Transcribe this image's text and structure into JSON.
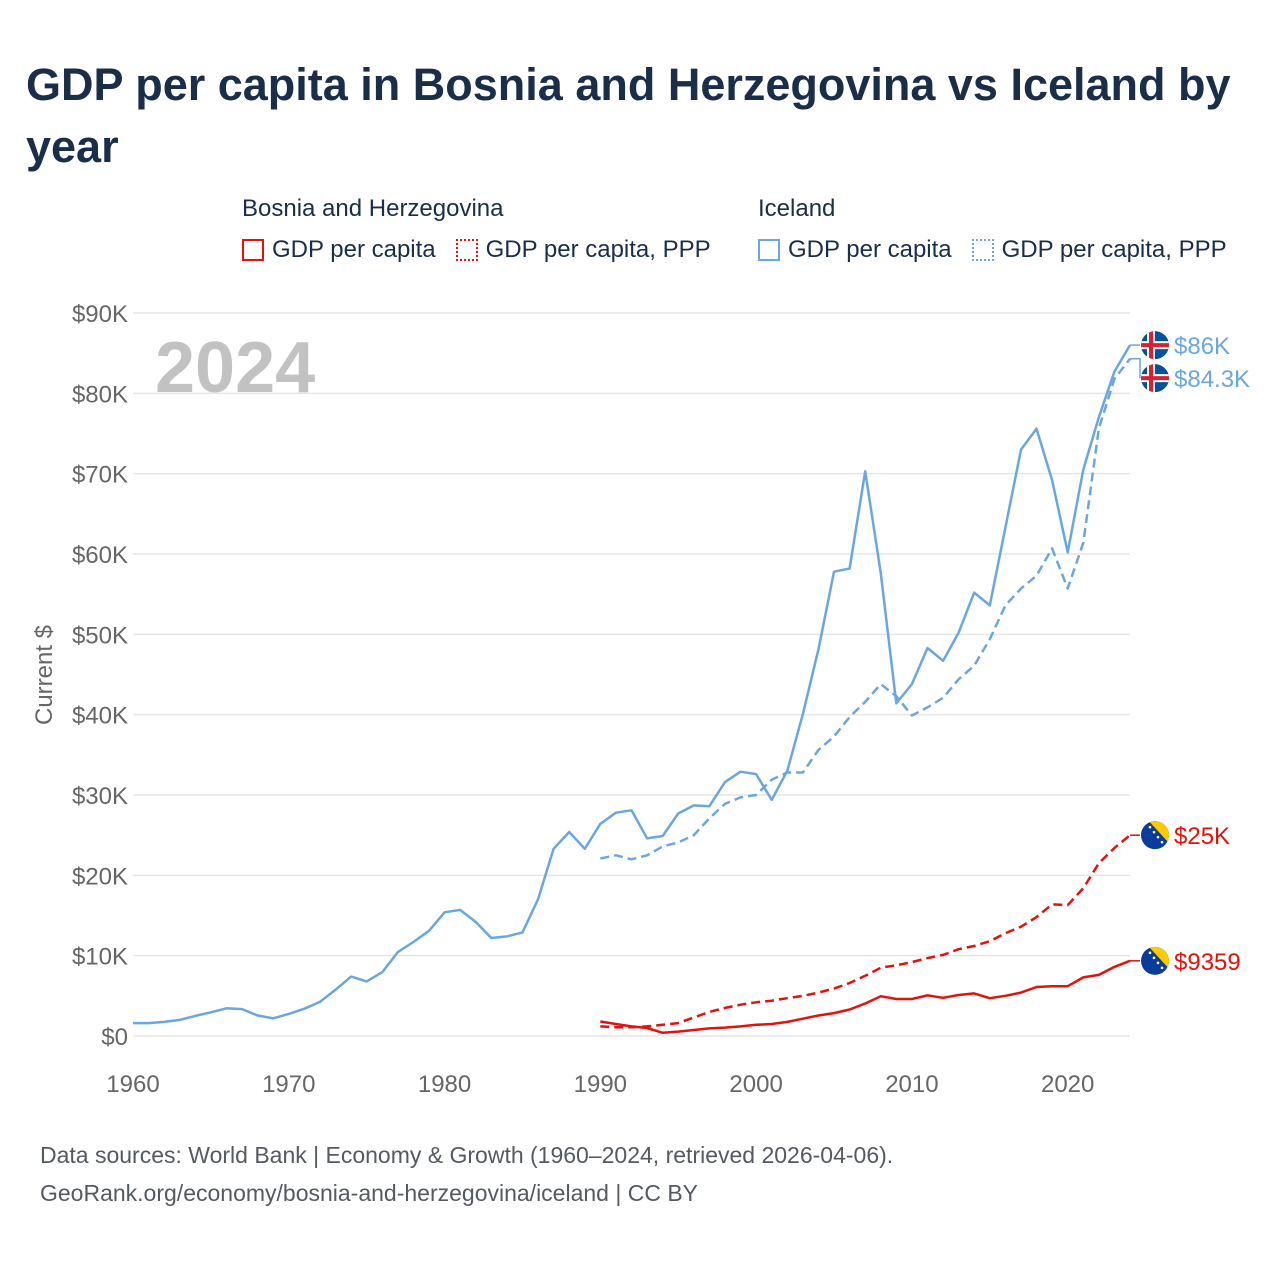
{
  "title": "GDP per capita in Bosnia and Herzegovina vs Iceland by year",
  "legend": {
    "groups": [
      {
        "name": "Bosnia and Herzegovina",
        "color": "#e3120b",
        "items": [
          {
            "label": "GDP per capita",
            "style": "solid"
          },
          {
            "label": "GDP per capita, PPP",
            "style": "dotted"
          }
        ]
      },
      {
        "name": "Iceland",
        "color": "#6aa6e0",
        "items": [
          {
            "label": "GDP per capita",
            "style": "solid"
          },
          {
            "label": "GDP per capita, PPP",
            "style": "dotted"
          }
        ]
      }
    ]
  },
  "year_label": "2024",
  "footer": {
    "line1": "Data sources: World Bank | Economy & Growth (1960–2024, retrieved 2026-04-06).",
    "line2": "GeoRank.org/economy/bosnia-and-herzegovina/iceland | CC BY"
  },
  "chart_data": {
    "type": "line",
    "ylabel": "Current $",
    "xlabel": "",
    "xlim": [
      1960,
      2024
    ],
    "ylim": [
      0,
      90000
    ],
    "x_ticks": [
      1960,
      1970,
      1980,
      1990,
      2000,
      2010,
      2020
    ],
    "x_tick_labels": [
      "1960",
      "1970",
      "1980",
      "1990",
      "2000",
      "2010",
      "2020"
    ],
    "y_ticks": [
      0,
      10000,
      20000,
      30000,
      40000,
      50000,
      60000,
      70000,
      80000,
      90000
    ],
    "y_tick_labels": [
      "$0",
      "$10K",
      "$20K",
      "$30K",
      "$40K",
      "$50K",
      "$60K",
      "$70K",
      "$80K",
      "$90K"
    ],
    "grid": true,
    "series": [
      {
        "name": "Iceland GDP per capita",
        "country": "Iceland",
        "flag": "iceland-flag-icon",
        "color": "#6aa6e0",
        "dash": "solid",
        "end_label": "$86K",
        "x": [
          1960,
          1961,
          1962,
          1963,
          1964,
          1965,
          1966,
          1967,
          1968,
          1969,
          1970,
          1971,
          1972,
          1973,
          1974,
          1975,
          1976,
          1977,
          1978,
          1979,
          1980,
          1981,
          1982,
          1983,
          1984,
          1985,
          1986,
          1987,
          1988,
          1989,
          1990,
          1991,
          1992,
          1993,
          1994,
          1995,
          1996,
          1997,
          1998,
          1999,
          2000,
          2001,
          2002,
          2003,
          2004,
          2005,
          2006,
          2007,
          2008,
          2009,
          2010,
          2011,
          2012,
          2013,
          2014,
          2015,
          2016,
          2017,
          2018,
          2019,
          2020,
          2021,
          2022,
          2023,
          2024
        ],
        "y": [
          1600,
          1600,
          1750,
          2000,
          2500,
          2950,
          3450,
          3350,
          2550,
          2200,
          2750,
          3400,
          4250,
          5750,
          7400,
          6800,
          7950,
          10450,
          11700,
          13100,
          15400,
          15700,
          14200,
          12200,
          12400,
          12900,
          17000,
          23300,
          25400,
          23300,
          26400,
          27800,
          28100,
          24600,
          24900,
          27700,
          28700,
          28600,
          31600,
          32900,
          32600,
          29400,
          33000,
          40100,
          48100,
          57800,
          58200,
          70300,
          57600,
          41400,
          43800,
          48300,
          46700,
          50200,
          55200,
          53600,
          63300,
          73000,
          75600,
          69200,
          60200,
          70500,
          77000,
          82700,
          86000
        ]
      },
      {
        "name": "Iceland GDP per capita, PPP",
        "country": "Iceland",
        "flag": "iceland-flag-icon",
        "color": "#6aa6e0",
        "dash": "dashed",
        "end_label": "$84.3K",
        "x": [
          1990,
          1991,
          1992,
          1993,
          1994,
          1995,
          1996,
          1997,
          1998,
          1999,
          2000,
          2001,
          2002,
          2003,
          2004,
          2005,
          2006,
          2007,
          2008,
          2009,
          2010,
          2011,
          2012,
          2013,
          2014,
          2015,
          2016,
          2017,
          2018,
          2019,
          2020,
          2021,
          2022,
          2023,
          2024
        ],
        "y": [
          22100,
          22500,
          22000,
          22500,
          23600,
          24100,
          25000,
          27100,
          28900,
          29700,
          30000,
          31900,
          32800,
          32800,
          35600,
          37300,
          39700,
          41600,
          43800,
          42300,
          39900,
          40900,
          42100,
          44400,
          46100,
          49400,
          53600,
          55700,
          57300,
          60700,
          55700,
          61400,
          75600,
          81800,
          84300
        ]
      },
      {
        "name": "Bosnia and Herzegovina GDP per capita, PPP",
        "country": "Bosnia and Herzegovina",
        "flag": "bosnia-flag-icon",
        "color": "#e3120b",
        "dash": "dashed",
        "end_label": "$25K",
        "x": [
          1990,
          1991,
          1992,
          1993,
          1994,
          1995,
          1996,
          1997,
          1998,
          1999,
          2000,
          2001,
          2002,
          2003,
          2004,
          2005,
          2006,
          2007,
          2008,
          2009,
          2010,
          2011,
          2012,
          2013,
          2014,
          2015,
          2016,
          2017,
          2018,
          2019,
          2020,
          2021,
          2022,
          2023,
          2024
        ],
        "y": [
          1200,
          1100,
          1100,
          1200,
          1400,
          1600,
          2300,
          3000,
          3500,
          3900,
          4200,
          4400,
          4700,
          5000,
          5400,
          5900,
          6600,
          7500,
          8500,
          8800,
          9200,
          9700,
          10100,
          10800,
          11200,
          11800,
          12800,
          13600,
          14800,
          16400,
          16300,
          18400,
          21500,
          23400,
          25000
        ]
      },
      {
        "name": "Bosnia and Herzegovina GDP per capita",
        "country": "Bosnia and Herzegovina",
        "flag": "bosnia-flag-icon",
        "color": "#e3120b",
        "dash": "solid",
        "end_label": "$9359",
        "x": [
          1990,
          1991,
          1992,
          1993,
          1994,
          1995,
          1996,
          1997,
          1998,
          1999,
          2000,
          2001,
          2002,
          2003,
          2004,
          2005,
          2006,
          2007,
          2008,
          2009,
          2010,
          2011,
          2012,
          2013,
          2014,
          2015,
          2016,
          2017,
          2018,
          2019,
          2020,
          2021,
          2022,
          2023,
          2024
        ],
        "y": [
          1800,
          1500,
          1200,
          1000,
          400,
          550,
          750,
          950,
          1050,
          1200,
          1400,
          1500,
          1750,
          2150,
          2550,
          2850,
          3300,
          4050,
          4950,
          4600,
          4600,
          5050,
          4750,
          5100,
          5300,
          4700,
          5000,
          5400,
          6100,
          6200,
          6200,
          7300,
          7600,
          8600,
          9359
        ]
      }
    ]
  }
}
